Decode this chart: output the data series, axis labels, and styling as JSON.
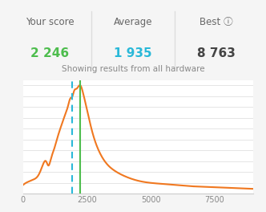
{
  "title": "Showing results from all hardware",
  "your_score": 2246,
  "average_score": 1935,
  "your_score_label": "2 246",
  "average_score_label": "1 935",
  "best_score_label": "8 763",
  "header_your_score": "Your score",
  "header_average": "Average",
  "header_best": "Best",
  "your_score_color": "#4dbd4d",
  "average_score_color": "#29b8d8",
  "best_score_color": "#444444",
  "header_color": "#666666",
  "line_color": "#f07820",
  "vline_your_color": "#4dbd4d",
  "vline_avg_color": "#29b8d8",
  "bg_header": "#f5f5f5",
  "bg_chart": "#ffffff",
  "divider_color": "#dddddd",
  "xlim": [
    0,
    9000
  ],
  "ylim": [
    0,
    1.05
  ],
  "xticks": [
    0,
    2500,
    5000,
    7500
  ],
  "curve_x": [
    0,
    50,
    200,
    400,
    600,
    700,
    800,
    900,
    1000,
    1100,
    1200,
    1350,
    1500,
    1650,
    1750,
    1850,
    1935,
    2000,
    2100,
    2246,
    2350,
    2500,
    2700,
    3000,
    3300,
    3600,
    4000,
    4500,
    5000,
    5500,
    6000,
    6500,
    7000,
    7500,
    8000,
    8500,
    9000
  ],
  "curve_y": [
    0.08,
    0.09,
    0.11,
    0.13,
    0.17,
    0.22,
    0.28,
    0.3,
    0.26,
    0.33,
    0.4,
    0.52,
    0.63,
    0.73,
    0.8,
    0.88,
    0.9,
    0.95,
    0.97,
    1.0,
    0.93,
    0.78,
    0.58,
    0.38,
    0.27,
    0.21,
    0.16,
    0.12,
    0.1,
    0.09,
    0.08,
    0.07,
    0.065,
    0.06,
    0.055,
    0.05,
    0.045
  ],
  "grid_lines_y": [
    0.1,
    0.2,
    0.3,
    0.4,
    0.5,
    0.6,
    0.7,
    0.8,
    0.9,
    1.0
  ]
}
